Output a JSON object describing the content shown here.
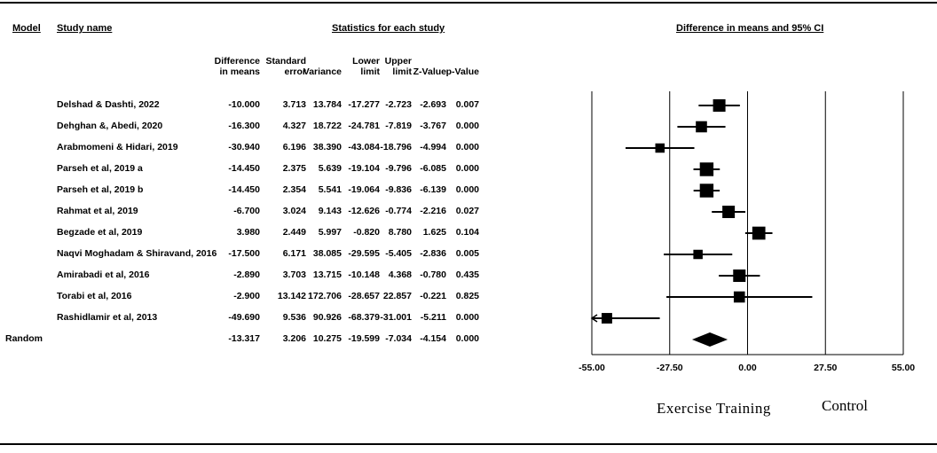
{
  "headers": {
    "model": "Model",
    "study": "Study name",
    "stats": "Statistics for each study",
    "ci": "Difference in means and 95% CI"
  },
  "columns": [
    {
      "l1": "Difference",
      "l2": "in means"
    },
    {
      "l1": "Standard",
      "l2": "error"
    },
    {
      "l1": "",
      "l2": "Variance"
    },
    {
      "l1": "Lower",
      "l2": "limit"
    },
    {
      "l1": "Upper",
      "l2": "limit"
    },
    {
      "l1": "",
      "l2": "Z-Value"
    },
    {
      "l1": "",
      "l2": "p-Value"
    }
  ],
  "rows": [
    {
      "study": "Delshad & Dashti, 2022",
      "cells": [
        "-10.000",
        "3.713",
        "13.784",
        "-17.277",
        "-2.723",
        "-2.693",
        "0.007"
      ]
    },
    {
      "study": "Dehghan &, Abedi, 2020",
      "cells": [
        "-16.300",
        "4.327",
        "18.722",
        "-24.781",
        "-7.819",
        "-3.767",
        "0.000"
      ]
    },
    {
      "study": "Arabmomeni & Hidari, 2019",
      "cells": [
        "-30.940",
        "6.196",
        "38.390",
        "-43.084",
        "-18.796",
        "-4.994",
        "0.000"
      ]
    },
    {
      "study": "Parseh et al, 2019 a",
      "cells": [
        "-14.450",
        "2.375",
        "5.639",
        "-19.104",
        "-9.796",
        "-6.085",
        "0.000"
      ]
    },
    {
      "study": "Parseh et al, 2019 b",
      "cells": [
        "-14.450",
        "2.354",
        "5.541",
        "-19.064",
        "-9.836",
        "-6.139",
        "0.000"
      ]
    },
    {
      "study": "Rahmat et al, 2019",
      "cells": [
        "-6.700",
        "3.024",
        "9.143",
        "-12.626",
        "-0.774",
        "-2.216",
        "0.027"
      ]
    },
    {
      "study": "Begzade et al, 2019",
      "cells": [
        "3.980",
        "2.449",
        "5.997",
        "-0.820",
        "8.780",
        "1.625",
        "0.104"
      ]
    },
    {
      "study": "Naqvi Moghadam & Shiravand, 2016",
      "cells": [
        "-17.500",
        "6.171",
        "38.085",
        "-29.595",
        "-5.405",
        "-2.836",
        "0.005"
      ]
    },
    {
      "study": "Amirabadi et al, 2016",
      "cells": [
        "-2.890",
        "3.703",
        "13.715",
        "-10.148",
        "4.368",
        "-0.780",
        "0.435"
      ]
    },
    {
      "study": "Torabi et al, 2016",
      "cells": [
        "-2.900",
        "13.142",
        "172.706",
        "-28.657",
        "22.857",
        "-0.221",
        "0.825"
      ]
    },
    {
      "study": "Rashidlamir et al, 2013",
      "cells": [
        "-49.690",
        "9.536",
        "90.926",
        "-68.379",
        "-31.001",
        "-5.211",
        "0.000"
      ]
    }
  ],
  "summary": {
    "model": "Random",
    "cells": [
      "-13.317",
      "3.206",
      "10.275",
      "-19.599",
      "-7.034",
      "-4.154",
      "0.000"
    ]
  },
  "chart_data": {
    "type": "forest",
    "xlim": [
      -55,
      55
    ],
    "ticks": [
      -55,
      -27.5,
      0,
      27.5,
      55
    ],
    "tick_labels": [
      "-55.00",
      "-27.50",
      "0.00",
      "27.50",
      "55.00"
    ],
    "left_label": "Exercise Training",
    "right_label": "Control",
    "studies": [
      {
        "mean": -10.0,
        "lower": -17.277,
        "upper": -2.723,
        "weight": 1.0
      },
      {
        "mean": -16.3,
        "lower": -24.781,
        "upper": -7.819,
        "weight": 0.9
      },
      {
        "mean": -30.94,
        "lower": -43.084,
        "upper": -18.796,
        "weight": 0.75
      },
      {
        "mean": -14.45,
        "lower": -19.104,
        "upper": -9.796,
        "weight": 1.1
      },
      {
        "mean": -14.45,
        "lower": -19.064,
        "upper": -9.836,
        "weight": 1.1
      },
      {
        "mean": -6.7,
        "lower": -12.626,
        "upper": -0.774,
        "weight": 1.0
      },
      {
        "mean": 3.98,
        "lower": -0.82,
        "upper": 8.78,
        "weight": 1.05
      },
      {
        "mean": -17.5,
        "lower": -29.595,
        "upper": -5.405,
        "weight": 0.75
      },
      {
        "mean": -2.89,
        "lower": -10.148,
        "upper": 4.368,
        "weight": 1.0
      },
      {
        "mean": -2.9,
        "lower": -28.657,
        "upper": 22.857,
        "weight": 0.9
      },
      {
        "mean": -49.69,
        "lower": -68.379,
        "upper": -31.001,
        "weight": 0.85
      }
    ],
    "summary": {
      "mean": -13.317,
      "lower": -19.599,
      "upper": -7.034
    }
  }
}
